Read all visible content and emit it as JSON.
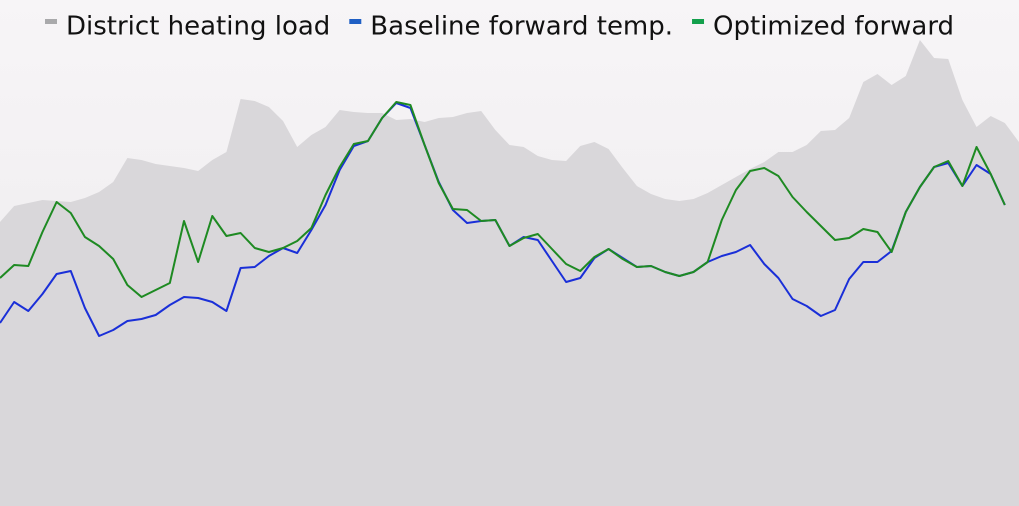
{
  "chart_data": {
    "type": "line",
    "ylim": [
      0,
      506
    ],
    "series": [
      {
        "name": "District heating load",
        "type": "area",
        "color": "#d9d7da",
        "legend_color": "#a9a9ab",
        "values": [
          284,
          300,
          303,
          306,
          305,
          304,
          308,
          314,
          324,
          348,
          346,
          342,
          340,
          338,
          335,
          346,
          354,
          407,
          405,
          399,
          385,
          359,
          371,
          379,
          396,
          394,
          393,
          393,
          386,
          387,
          384,
          388,
          389,
          393,
          395,
          376,
          361,
          359,
          350,
          346,
          345,
          360,
          364,
          357,
          338,
          320,
          312,
          307,
          305,
          307,
          313,
          321,
          329,
          337,
          344,
          354,
          354,
          361,
          375,
          376,
          388,
          424,
          432,
          421,
          430,
          466,
          448,
          447,
          406,
          379,
          390,
          383,
          364
        ]
      },
      {
        "name": "Baseline forward temp.",
        "type": "line",
        "color": "#1a2fd8",
        "legend_color": "#1f5fc4",
        "values": [
          183,
          204,
          195,
          212,
          232,
          235,
          198,
          170,
          176,
          185,
          187,
          191,
          201,
          209,
          208,
          204,
          195,
          238,
          239,
          250,
          258,
          253,
          276,
          301,
          336,
          360,
          365,
          388,
          403,
          398,
          361,
          324,
          296,
          283,
          285,
          286,
          260,
          269,
          266,
          245,
          224,
          228,
          248,
          257,
          248,
          239,
          240,
          234,
          230,
          234,
          244,
          250,
          254,
          261,
          242,
          228,
          207,
          200,
          190,
          196,
          227,
          244,
          244,
          255,
          294,
          319,
          339,
          343,
          320,
          341,
          332,
          301,
          null
        ]
      },
      {
        "name": "Optimized forward",
        "type": "line",
        "color": "#1e8a22",
        "legend_color": "#13a04c",
        "values": [
          228,
          241,
          240,
          274,
          304,
          293,
          269,
          260,
          247,
          221,
          209,
          216,
          223,
          285,
          244,
          290,
          270,
          273,
          258,
          254,
          258,
          265,
          278,
          311,
          339,
          362,
          365,
          388,
          404,
          401,
          361,
          323,
          297,
          296,
          285,
          286,
          260,
          268,
          272,
          257,
          242,
          235,
          249,
          257,
          247,
          239,
          240,
          234,
          230,
          234,
          244,
          286,
          316,
          335,
          338,
          330,
          309,
          294,
          280,
          266,
          268,
          277,
          274,
          254,
          294,
          319,
          339,
          345,
          320,
          359,
          332,
          301,
          null
        ]
      }
    ]
  }
}
